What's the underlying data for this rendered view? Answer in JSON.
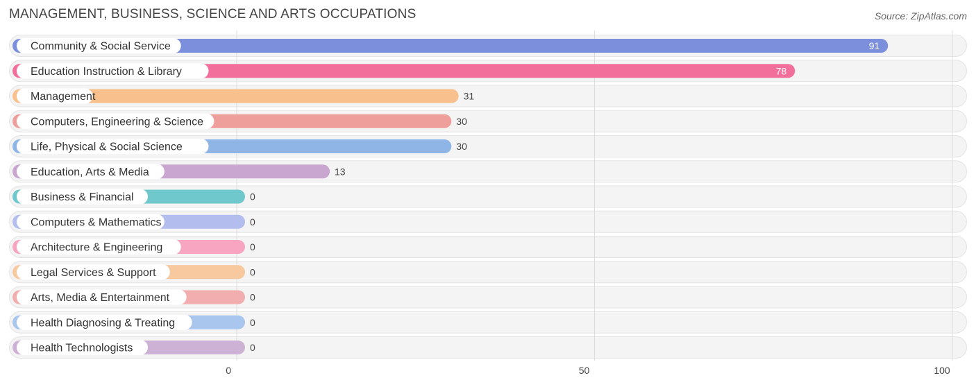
{
  "chart_data": {
    "type": "bar",
    "orientation": "horizontal",
    "title": "MANAGEMENT, BUSINESS, SCIENCE AND ARTS OCCUPATIONS",
    "source": "Source: ZipAtlas.com",
    "xlim": [
      0,
      100
    ],
    "x_ticks": [
      0,
      50,
      100
    ],
    "x_tick_labels": [
      "0",
      "50",
      "100"
    ],
    "grid": true,
    "categories": [
      "Community & Social Service",
      "Education Instruction & Library",
      "Management",
      "Computers, Engineering & Science",
      "Life, Physical & Social Science",
      "Education, Arts & Media",
      "Business & Financial",
      "Computers & Mathematics",
      "Architecture & Engineering",
      "Legal Services & Support",
      "Arts, Media & Entertainment",
      "Health Diagnosing & Treating",
      "Health Technologists"
    ],
    "values": [
      91,
      78,
      31,
      30,
      30,
      13,
      0,
      0,
      0,
      0,
      0,
      0,
      0
    ],
    "value_labels": [
      "91",
      "78",
      "31",
      "30",
      "30",
      "13",
      "0",
      "0",
      "0",
      "0",
      "0",
      "0",
      "0"
    ],
    "colors": [
      "#7b8fdd",
      "#f26f9b",
      "#f8c08c",
      "#ee9f9b",
      "#8fb5e6",
      "#c8a6cf",
      "#6fc8cb",
      "#b3bdee",
      "#f7a5c0",
      "#f8c89e",
      "#f2aeae",
      "#a9c6ee",
      "#cdb2d6"
    ]
  }
}
